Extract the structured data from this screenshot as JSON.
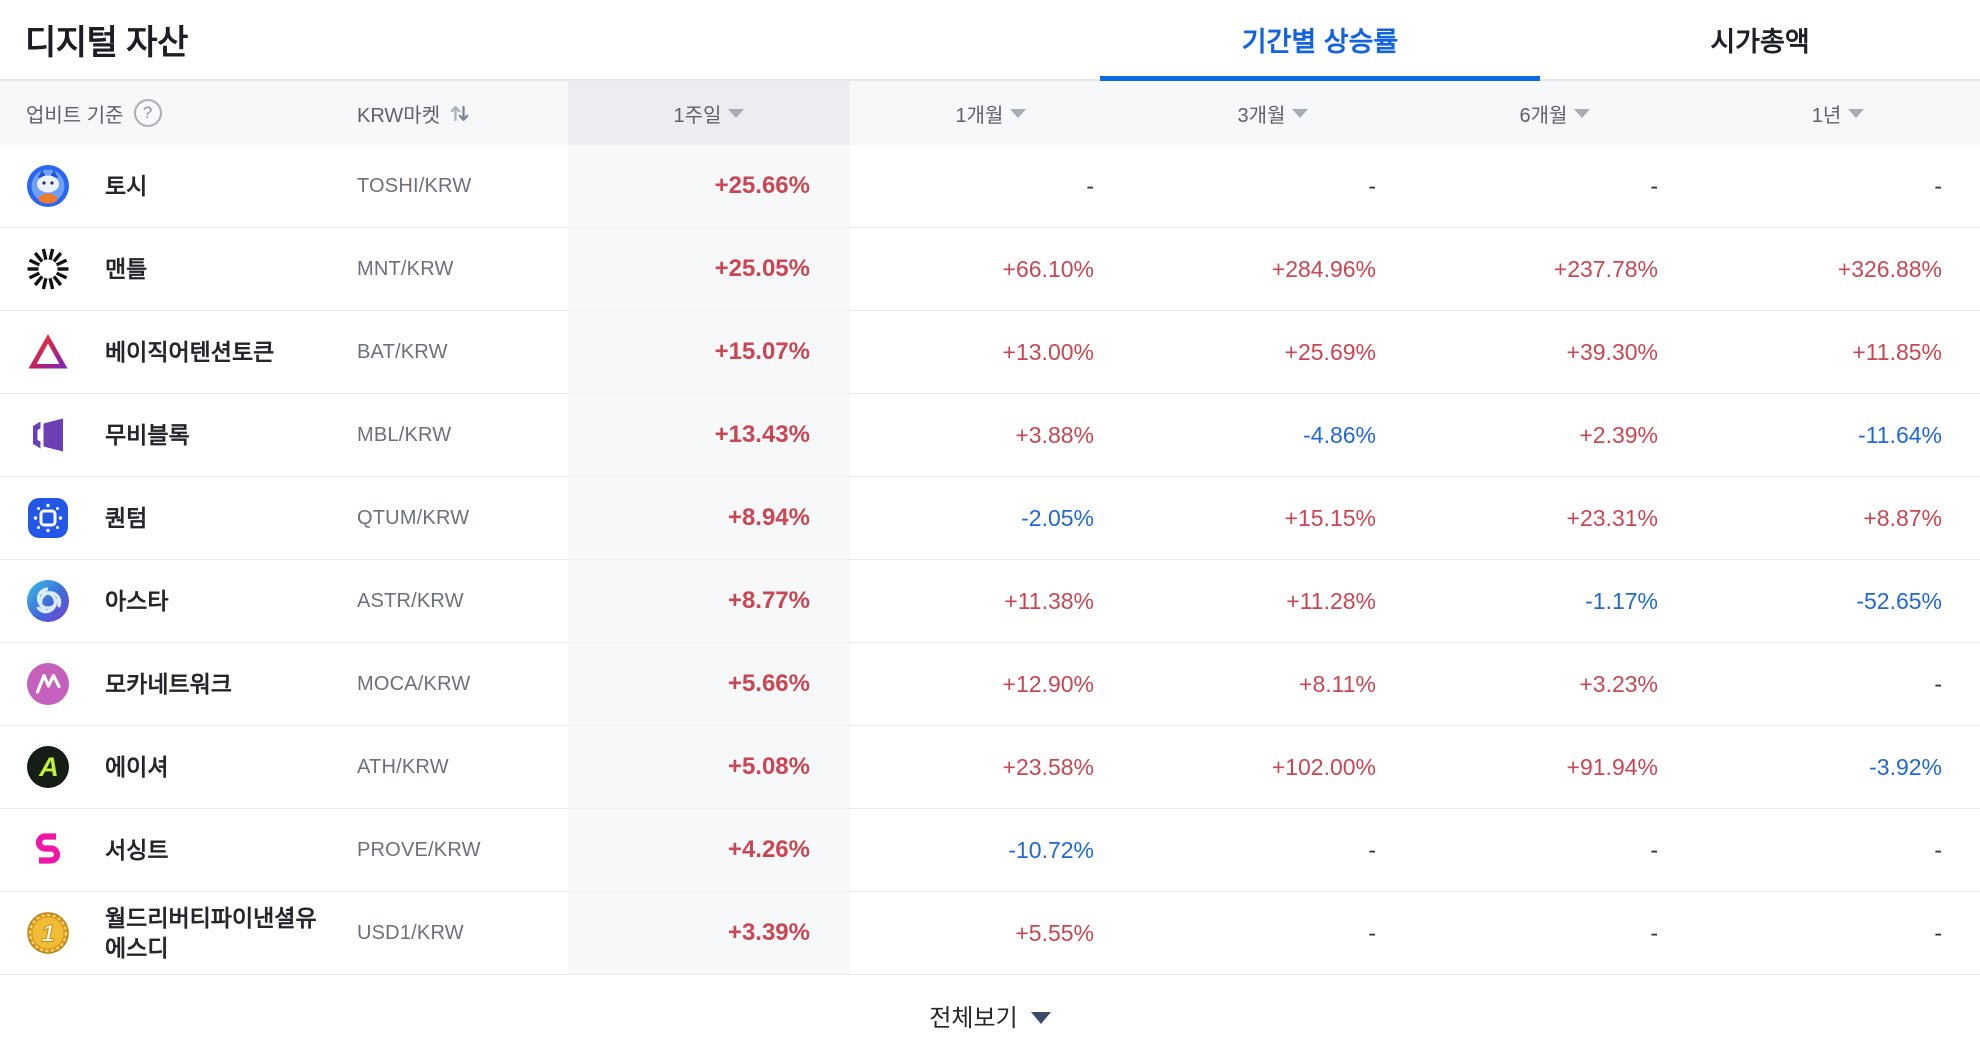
{
  "page": {
    "title": "디지털 자산",
    "tabs": [
      {
        "label": "기간별 상승률",
        "active": true
      },
      {
        "label": "시가총액",
        "active": false
      }
    ]
  },
  "table": {
    "headers": {
      "basis": "업비트 기준",
      "help_icon": "question-circle-icon",
      "market": "KRW마켓",
      "market_icon": "swap-sort-icon",
      "periods": [
        "1주일",
        "1개월",
        "3개월",
        "6개월",
        "1년"
      ]
    },
    "rows": [
      {
        "name": "토시",
        "pair": "TOSHI/KRW",
        "icon": "toshi-coin-icon",
        "values": [
          {
            "text": "+25.66%",
            "dir": "up"
          },
          {
            "text": "-",
            "dir": "flat"
          },
          {
            "text": "-",
            "dir": "flat"
          },
          {
            "text": "-",
            "dir": "flat"
          },
          {
            "text": "-",
            "dir": "flat"
          }
        ]
      },
      {
        "name": "맨틀",
        "pair": "MNT/KRW",
        "icon": "mantle-coin-icon",
        "values": [
          {
            "text": "+25.05%",
            "dir": "up"
          },
          {
            "text": "+66.10%",
            "dir": "up"
          },
          {
            "text": "+284.96%",
            "dir": "up"
          },
          {
            "text": "+237.78%",
            "dir": "up"
          },
          {
            "text": "+326.88%",
            "dir": "up"
          }
        ]
      },
      {
        "name": "베이직어텐션토큰",
        "pair": "BAT/KRW",
        "icon": "bat-coin-icon",
        "values": [
          {
            "text": "+15.07%",
            "dir": "up"
          },
          {
            "text": "+13.00%",
            "dir": "up"
          },
          {
            "text": "+25.69%",
            "dir": "up"
          },
          {
            "text": "+39.30%",
            "dir": "up"
          },
          {
            "text": "+11.85%",
            "dir": "up"
          }
        ]
      },
      {
        "name": "무비블록",
        "pair": "MBL/KRW",
        "icon": "moviebloc-coin-icon",
        "values": [
          {
            "text": "+13.43%",
            "dir": "up"
          },
          {
            "text": "+3.88%",
            "dir": "up"
          },
          {
            "text": "-4.86%",
            "dir": "down"
          },
          {
            "text": "+2.39%",
            "dir": "up"
          },
          {
            "text": "-11.64%",
            "dir": "down"
          }
        ]
      },
      {
        "name": "퀀텀",
        "pair": "QTUM/KRW",
        "icon": "qtum-coin-icon",
        "values": [
          {
            "text": "+8.94%",
            "dir": "up"
          },
          {
            "text": "-2.05%",
            "dir": "down"
          },
          {
            "text": "+15.15%",
            "dir": "up"
          },
          {
            "text": "+23.31%",
            "dir": "up"
          },
          {
            "text": "+8.87%",
            "dir": "up"
          }
        ]
      },
      {
        "name": "아스타",
        "pair": "ASTR/KRW",
        "icon": "astar-coin-icon",
        "values": [
          {
            "text": "+8.77%",
            "dir": "up"
          },
          {
            "text": "+11.38%",
            "dir": "up"
          },
          {
            "text": "+11.28%",
            "dir": "up"
          },
          {
            "text": "-1.17%",
            "dir": "down"
          },
          {
            "text": "-52.65%",
            "dir": "down"
          }
        ]
      },
      {
        "name": "모카네트워크",
        "pair": "MOCA/KRW",
        "icon": "moca-coin-icon",
        "values": [
          {
            "text": "+5.66%",
            "dir": "up"
          },
          {
            "text": "+12.90%",
            "dir": "up"
          },
          {
            "text": "+8.11%",
            "dir": "up"
          },
          {
            "text": "+3.23%",
            "dir": "up"
          },
          {
            "text": "-",
            "dir": "flat"
          }
        ]
      },
      {
        "name": "에이셔",
        "pair": "ATH/KRW",
        "icon": "aethir-coin-icon",
        "values": [
          {
            "text": "+5.08%",
            "dir": "up"
          },
          {
            "text": "+23.58%",
            "dir": "up"
          },
          {
            "text": "+102.00%",
            "dir": "up"
          },
          {
            "text": "+91.94%",
            "dir": "up"
          },
          {
            "text": "-3.92%",
            "dir": "down"
          }
        ]
      },
      {
        "name": "서싱트",
        "pair": "PROVE/KRW",
        "icon": "succinct-coin-icon",
        "values": [
          {
            "text": "+4.26%",
            "dir": "up"
          },
          {
            "text": "-10.72%",
            "dir": "down"
          },
          {
            "text": "-",
            "dir": "flat"
          },
          {
            "text": "-",
            "dir": "flat"
          },
          {
            "text": "-",
            "dir": "flat"
          }
        ]
      },
      {
        "name": "월드리버티파이낸셜유에스디",
        "pair": "USD1/KRW",
        "icon": "usd1-coin-icon",
        "values": [
          {
            "text": "+3.39%",
            "dir": "up"
          },
          {
            "text": "+5.55%",
            "dir": "up"
          },
          {
            "text": "-",
            "dir": "flat"
          },
          {
            "text": "-",
            "dir": "flat"
          },
          {
            "text": "-",
            "dir": "flat"
          }
        ]
      }
    ],
    "footer": {
      "label": "전체보기"
    }
  },
  "colors": {
    "rise": "#c94652",
    "fall": "#2268d5",
    "accent_blue": "#1163e0",
    "tab_underline": "#0d6ce5",
    "header_bg": "#f7f8fa",
    "highlight_col_bg": "#ecedf1"
  }
}
